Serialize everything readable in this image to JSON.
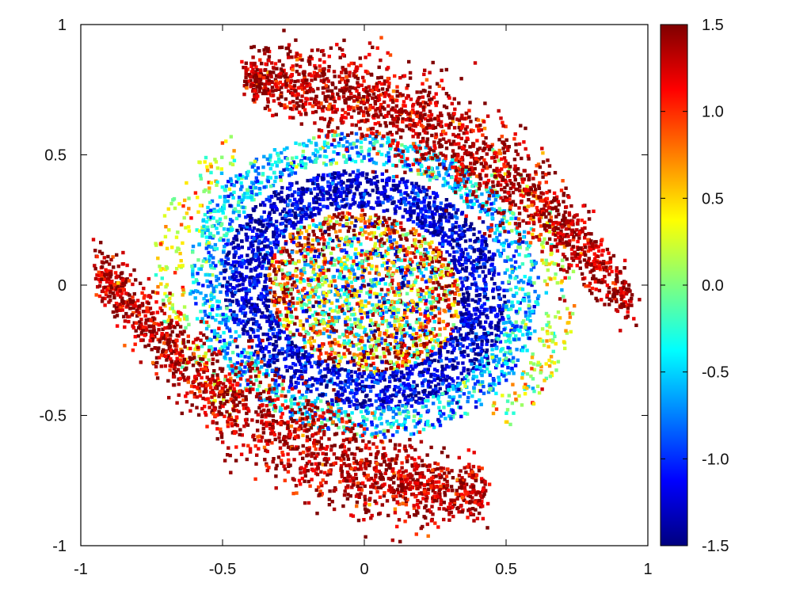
{
  "chart_data": {
    "type": "scatter",
    "title": "",
    "xlabel": "",
    "ylabel": "",
    "xlim": [
      -1,
      1
    ],
    "ylim": [
      -1,
      1
    ],
    "xticks": [
      -1,
      -0.5,
      0,
      0.5,
      1
    ],
    "xtick_labels": [
      "-1",
      "-0.5",
      "0",
      "0.5",
      "1"
    ],
    "yticks": [
      -1,
      -0.5,
      0,
      0.5,
      1
    ],
    "ytick_labels": [
      "-1",
      "-0.5",
      "0",
      "0.5",
      "1"
    ],
    "grid": false,
    "colorbar": {
      "range": [
        -1.5,
        1.5
      ],
      "ticks": [
        -1.5,
        -1.0,
        -0.5,
        0.0,
        0.5,
        1.0,
        1.5
      ],
      "tick_labels": [
        "-1.5",
        "-1.0",
        "-0.5",
        "0.0",
        "0.5",
        "1.0",
        "1.5"
      ],
      "colormap": "jet",
      "colors": [
        "#00007f",
        "#0000ff",
        "#007fff",
        "#00ffff",
        "#7fff7f",
        "#ffff00",
        "#ff7f00",
        "#ff0000",
        "#7f0000"
      ]
    },
    "series": [
      {
        "description_free": true,
        "points_generated_by_script": true,
        "regions": [
          {
            "structure": "core",
            "center": [
              0.0,
              -0.03
            ],
            "radius": [
              0.35,
              0.3
            ],
            "value_mean": 0.3,
            "value_spread": 1.4
          },
          {
            "structure": "inner-ring",
            "radius": [
              0.5,
              0.42
            ],
            "value_mean": -1.25,
            "value_spread": 0.3
          },
          {
            "structure": "middle-ring",
            "radius": [
              0.65,
              0.55
            ],
            "value_mean": -0.3,
            "value_spread": 0.5
          },
          {
            "structure": "outer-arm-upper",
            "x_range": [
              -0.45,
              0.95
            ],
            "value_mean": 1.35,
            "value_spread": 0.3
          },
          {
            "structure": "outer-arm-lower",
            "x_range": [
              -0.95,
              0.45
            ],
            "value_mean": 1.35,
            "value_spread": 0.3
          }
        ]
      }
    ]
  }
}
